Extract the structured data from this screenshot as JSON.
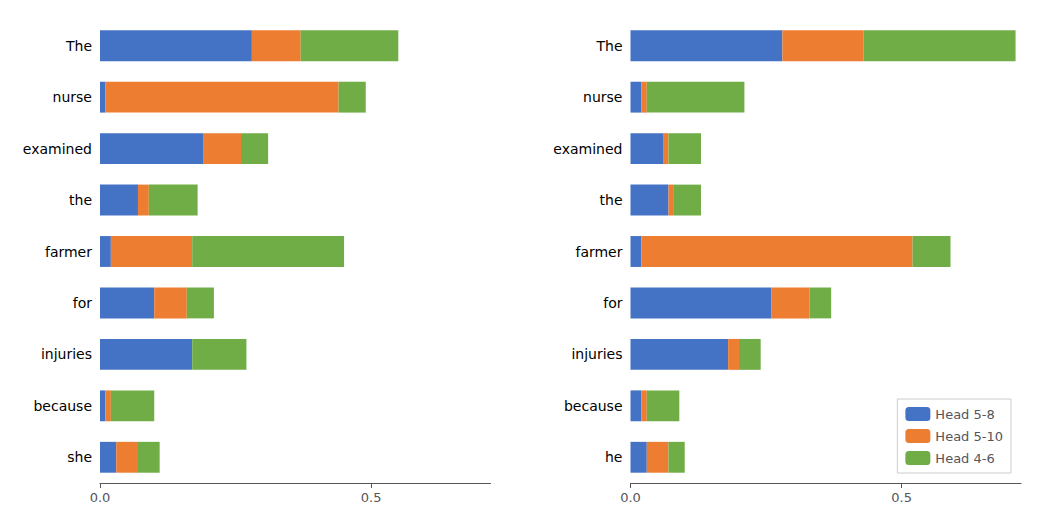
{
  "chart_data": [
    {
      "type": "bar",
      "orientation": "horizontal",
      "stacked": true,
      "categories": [
        "The",
        "nurse",
        "examined",
        "the",
        "farmer",
        "for",
        "injuries",
        "because",
        "she"
      ],
      "series": [
        {
          "name": "Head 5-8",
          "color": "#4472C4",
          "values": [
            0.28,
            0.01,
            0.19,
            0.07,
            0.02,
            0.1,
            0.17,
            0.01,
            0.03
          ]
        },
        {
          "name": "Head 5-10",
          "color": "#ED7D31",
          "values": [
            0.09,
            0.43,
            0.07,
            0.02,
            0.15,
            0.06,
            0.0,
            0.01,
            0.04
          ]
        },
        {
          "name": "Head 4-6",
          "color": "#70AD47",
          "values": [
            0.18,
            0.05,
            0.05,
            0.09,
            0.28,
            0.05,
            0.1,
            0.08,
            0.04
          ]
        }
      ],
      "xlim": [
        0,
        0.72
      ],
      "xticks": [
        {
          "value": 0,
          "label": "0.0"
        },
        0.5
      ],
      "grid": false
    },
    {
      "type": "bar",
      "orientation": "horizontal",
      "stacked": true,
      "categories": [
        "The",
        "nurse",
        "examined",
        "the",
        "farmer",
        "for",
        "injuries",
        "because",
        "he"
      ],
      "series": [
        {
          "name": "Head 5-8",
          "color": "#4472C4",
          "values": [
            0.28,
            0.02,
            0.06,
            0.07,
            0.02,
            0.26,
            0.18,
            0.02,
            0.03
          ]
        },
        {
          "name": "Head 5-10",
          "color": "#ED7D31",
          "values": [
            0.15,
            0.01,
            0.01,
            0.01,
            0.5,
            0.07,
            0.02,
            0.01,
            0.04
          ]
        },
        {
          "name": "Head 4-6",
          "color": "#70AD47",
          "values": [
            0.28,
            0.18,
            0.06,
            0.05,
            0.07,
            0.04,
            0.04,
            0.06,
            0.03
          ]
        }
      ],
      "xlim": [
        0,
        0.72
      ],
      "xticks": [
        {
          "value": 0,
          "label": "0.0"
        },
        0.5
      ],
      "grid": false,
      "legend": "lower right"
    }
  ]
}
